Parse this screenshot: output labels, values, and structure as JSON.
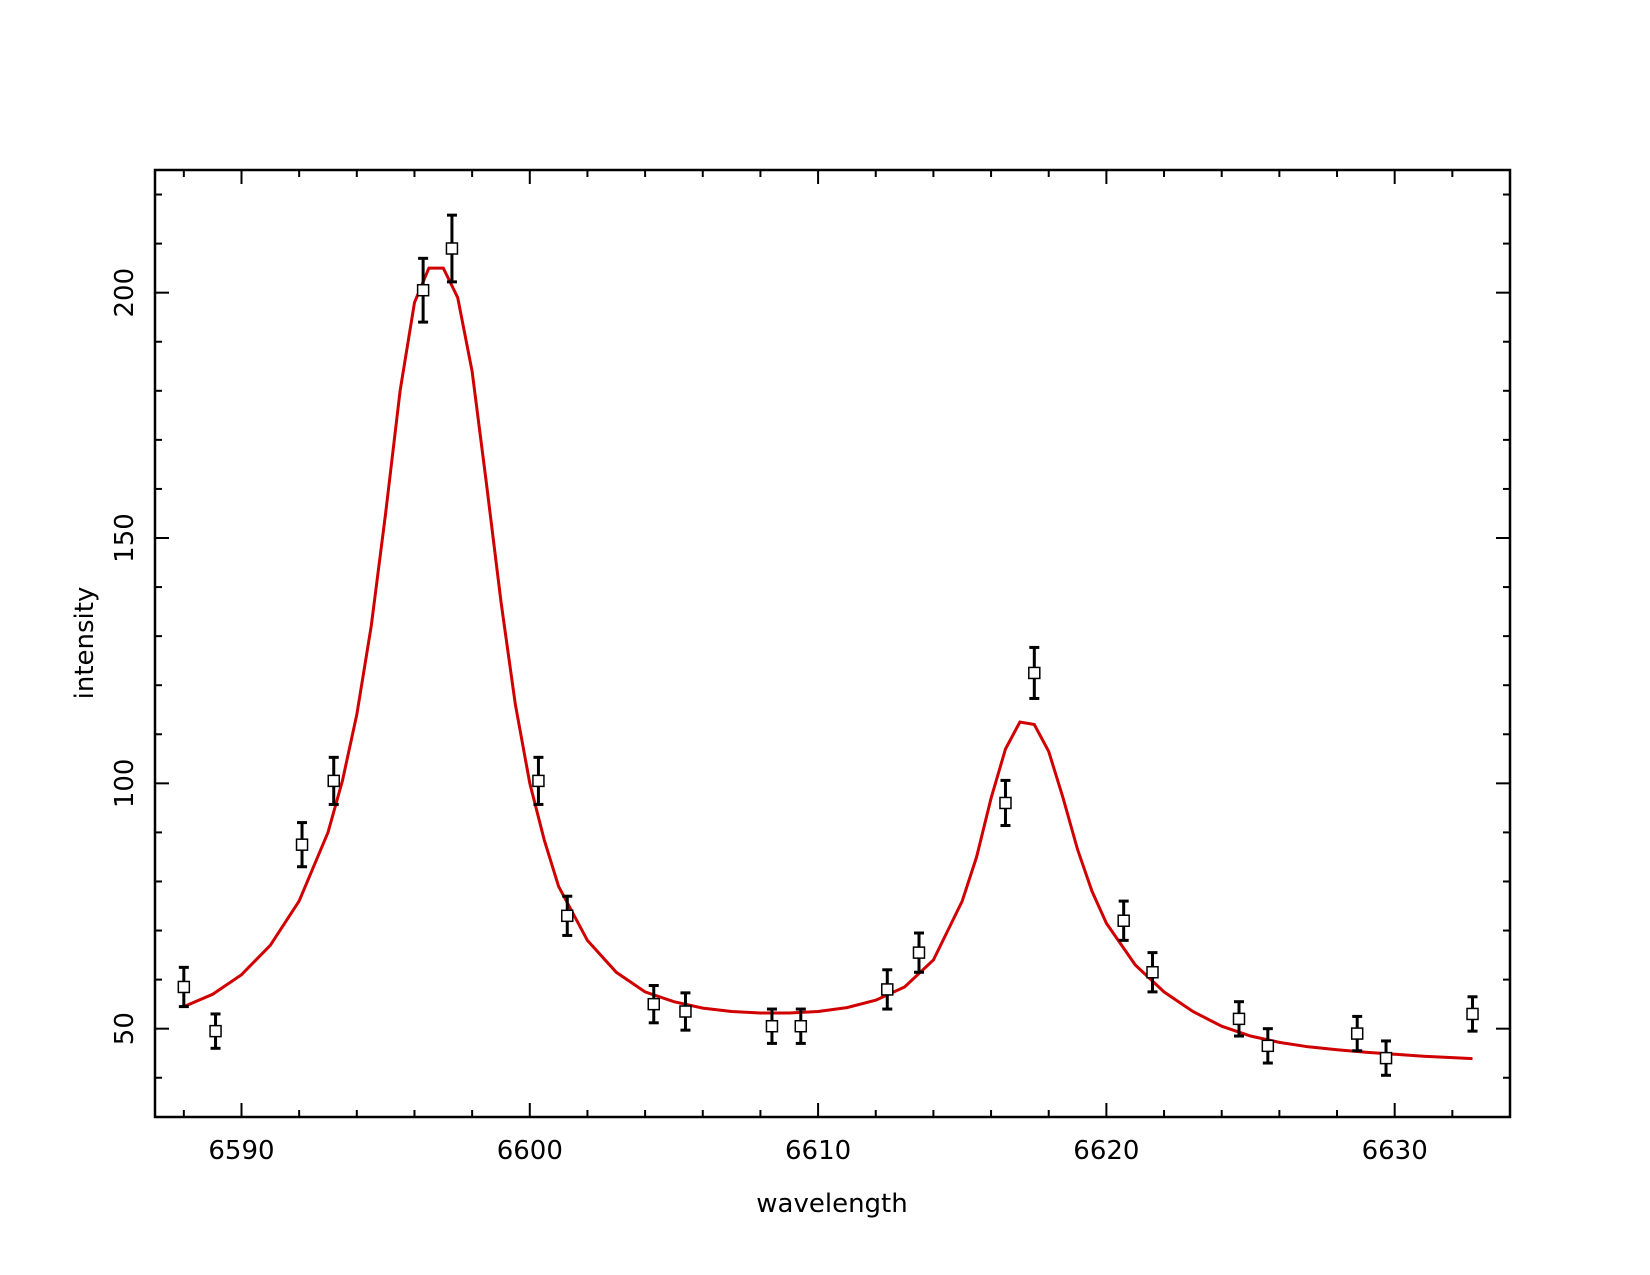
{
  "chart_data": {
    "type": "scatter",
    "xlabel": "wavelength",
    "ylabel": "intensity",
    "xlim": [
      6587,
      6634
    ],
    "ylim": [
      32,
      225
    ],
    "x_ticks": [
      6590,
      6600,
      6610,
      6620,
      6630
    ],
    "y_ticks": [
      50,
      100,
      150,
      200
    ],
    "grid": false,
    "legend": "none",
    "colors": {
      "points": "#000000",
      "fit": "#d00000"
    },
    "points": [
      {
        "x": 6588.0,
        "y": 58.5,
        "err": 4.0
      },
      {
        "x": 6589.1,
        "y": 49.5,
        "err": 3.5
      },
      {
        "x": 6592.1,
        "y": 87.5,
        "err": 4.5
      },
      {
        "x": 6593.2,
        "y": 100.5,
        "err": 4.8
      },
      {
        "x": 6596.3,
        "y": 200.5,
        "err": 6.5
      },
      {
        "x": 6597.3,
        "y": 209.0,
        "err": 6.8
      },
      {
        "x": 6600.3,
        "y": 100.5,
        "err": 4.8
      },
      {
        "x": 6601.3,
        "y": 73.0,
        "err": 4.0
      },
      {
        "x": 6604.3,
        "y": 55.0,
        "err": 3.8
      },
      {
        "x": 6605.4,
        "y": 53.5,
        "err": 3.8
      },
      {
        "x": 6608.4,
        "y": 50.5,
        "err": 3.5
      },
      {
        "x": 6609.4,
        "y": 50.5,
        "err": 3.5
      },
      {
        "x": 6612.4,
        "y": 58.0,
        "err": 4.0
      },
      {
        "x": 6613.5,
        "y": 65.5,
        "err": 4.0
      },
      {
        "x": 6616.5,
        "y": 96.0,
        "err": 4.6
      },
      {
        "x": 6617.5,
        "y": 122.5,
        "err": 5.2
      },
      {
        "x": 6620.6,
        "y": 72.0,
        "err": 4.0
      },
      {
        "x": 6621.6,
        "y": 61.5,
        "err": 4.0
      },
      {
        "x": 6624.6,
        "y": 52.0,
        "err": 3.5
      },
      {
        "x": 6625.6,
        "y": 46.5,
        "err": 3.5
      },
      {
        "x": 6628.7,
        "y": 49.0,
        "err": 3.5
      },
      {
        "x": 6629.7,
        "y": 44.0,
        "err": 3.5
      },
      {
        "x": 6632.7,
        "y": 53.0,
        "err": 3.5
      }
    ],
    "fit_curve": {
      "x": [
        6588.0,
        6589.0,
        6590.0,
        6591.0,
        6592.0,
        6593.0,
        6593.5,
        6594.0,
        6594.5,
        6595.0,
        6595.5,
        6596.0,
        6596.5,
        6597.0,
        6597.5,
        6598.0,
        6598.5,
        6599.0,
        6599.5,
        6600.0,
        6600.5,
        6601.0,
        6602.0,
        6603.0,
        6604.0,
        6605.0,
        6606.0,
        6607.0,
        6608.0,
        6609.0,
        6610.0,
        6611.0,
        6612.0,
        6613.0,
        6614.0,
        6615.0,
        6615.5,
        6616.0,
        6616.5,
        6617.0,
        6617.5,
        6618.0,
        6618.5,
        6619.0,
        6619.5,
        6620.0,
        6621.0,
        6622.0,
        6623.0,
        6624.0,
        6625.0,
        6626.0,
        6627.0,
        6628.0,
        6629.0,
        6630.0,
        6631.0,
        6632.0,
        6632.7
      ],
      "y": [
        54.5,
        57.0,
        61.0,
        67.0,
        76.0,
        90.0,
        100.5,
        114.0,
        132.0,
        155.0,
        180.0,
        198.0,
        205.0,
        205.0,
        199.0,
        184.0,
        161.0,
        137.0,
        116.0,
        100.0,
        88.5,
        79.0,
        68.0,
        61.5,
        57.5,
        55.5,
        54.2,
        53.5,
        53.2,
        53.2,
        53.5,
        54.3,
        55.8,
        58.5,
        64.0,
        76.0,
        85.0,
        97.0,
        107.0,
        112.5,
        112.0,
        106.5,
        97.0,
        86.5,
        78.0,
        71.5,
        63.0,
        57.5,
        53.5,
        50.5,
        48.5,
        47.2,
        46.3,
        45.7,
        45.2,
        44.8,
        44.4,
        44.1,
        43.9
      ]
    }
  }
}
